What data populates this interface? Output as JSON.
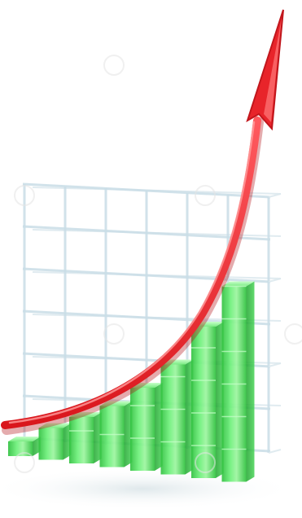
{
  "scene": {
    "description_icon": "growth-bar-chart-with-arrow-icon",
    "colors": {
      "background": "#ffffff",
      "grid": "#c9dde6",
      "bar_face": "#4be35a",
      "bar_light": "#9cf59f",
      "bar_dark": "#21b232",
      "arrow": "#e8242a",
      "arrow_light": "#ff7a7a",
      "shadow": "#e6eef0"
    },
    "bars": {
      "count": 8,
      "relative_heights": [
        0.06,
        0.13,
        0.19,
        0.25,
        0.34,
        0.45,
        0.62,
        0.8
      ]
    },
    "grid": {
      "columns": 6,
      "rows": 6
    },
    "arrow": {
      "direction": "up-right",
      "shape": "exponential-curve"
    },
    "watermark": {
      "present": true,
      "icon": "copyright-swirl-icon"
    }
  }
}
